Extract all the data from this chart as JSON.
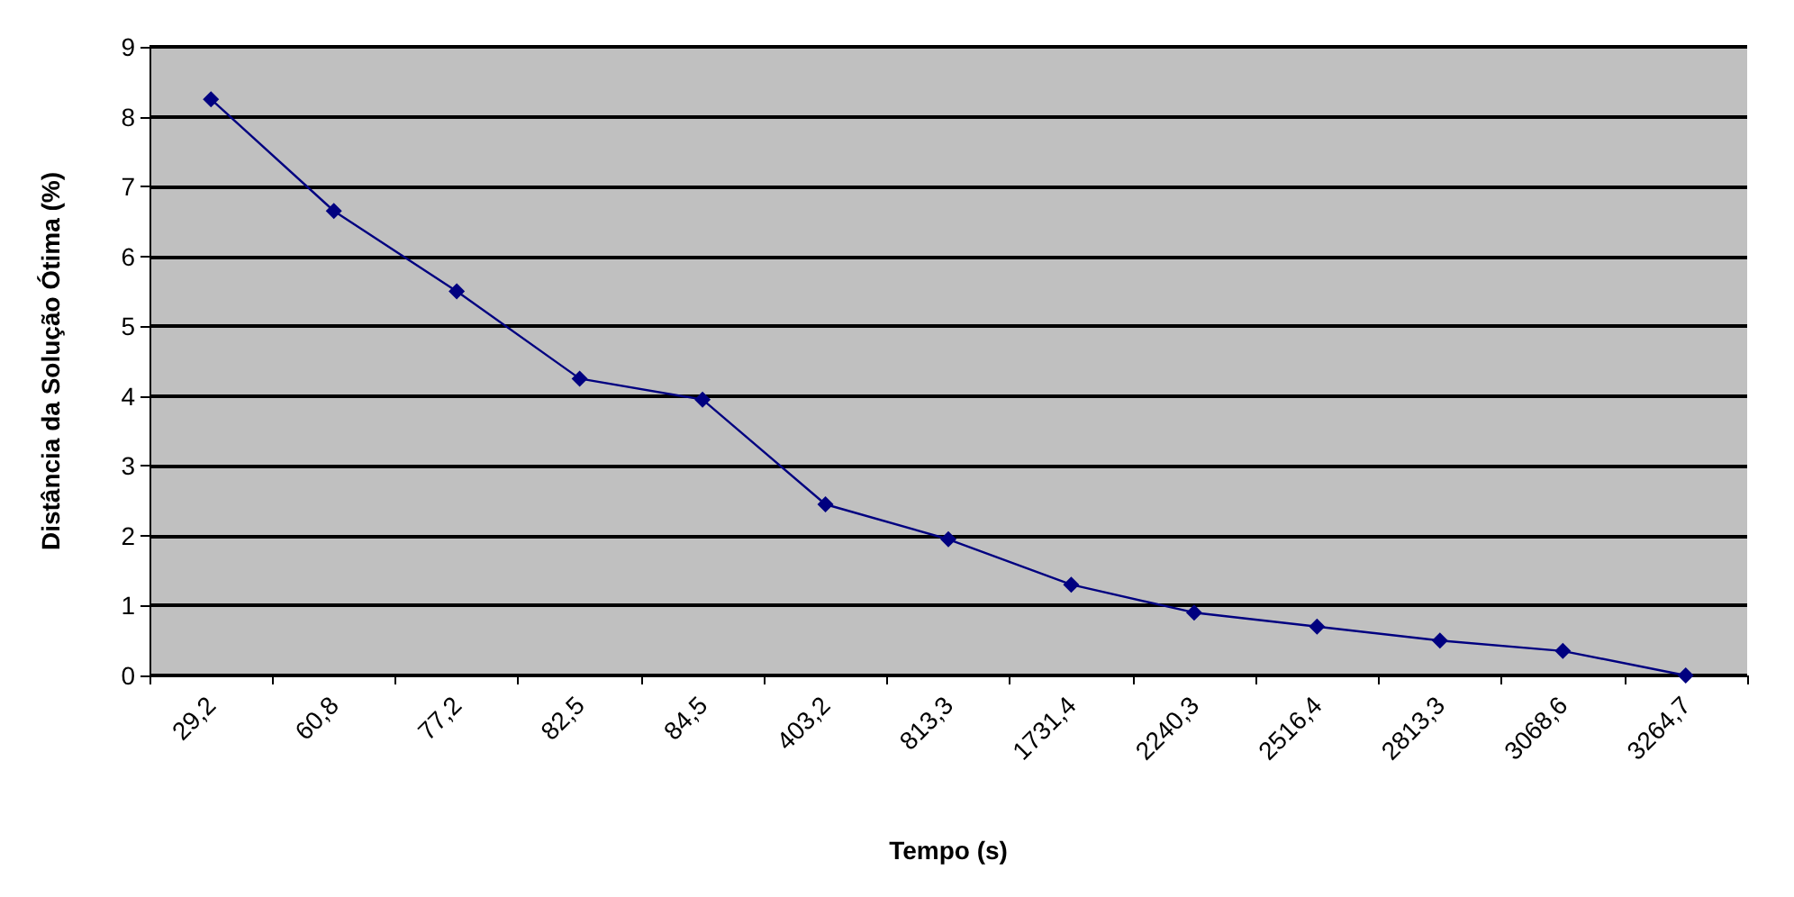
{
  "chart_data": {
    "type": "line",
    "xlabel": "Tempo (s)",
    "ylabel": "Distância da Solução Ótima (%)",
    "categories": [
      "29,2",
      "60,8",
      "77,2",
      "82,5",
      "84,5",
      "403,2",
      "813,3",
      "1731,4",
      "2240,3",
      "2516,4",
      "2813,3",
      "3068,6",
      "3264,7"
    ],
    "series": [
      {
        "color": "#000080",
        "values": [
          8.25,
          6.65,
          5.5,
          4.25,
          3.95,
          2.45,
          1.95,
          1.3,
          0.9,
          0.7,
          0.5,
          0.35,
          0
        ]
      }
    ],
    "ylim": [
      0,
      9
    ],
    "yticks": [
      0,
      1,
      2,
      3,
      4,
      5,
      6,
      7,
      8,
      9
    ],
    "grid": "y",
    "marker": "diamond",
    "line_style": "solid"
  }
}
